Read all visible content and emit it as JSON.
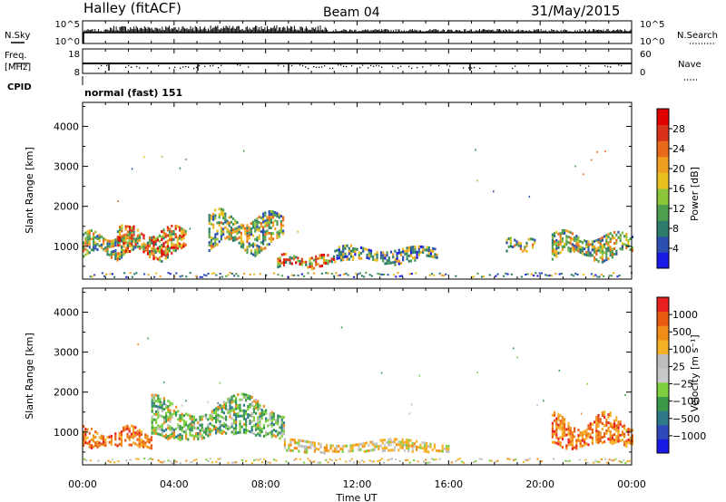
{
  "header": {
    "station": "Halley (fitACF)",
    "beam": "Beam 04",
    "date": "31/May/2015"
  },
  "strip": {
    "nsky_label": "N.Sky",
    "nsky_top": "10^5",
    "nsky_bottom": "10^0",
    "nsearch_label": "N.Search",
    "nsearch_top": "10^5",
    "nsearch_bottom": "10^0",
    "freq_label": "Freq.",
    "freq_unit": "[MHz]",
    "freq_top": "18",
    "freq_bottom": "8",
    "nave_label": "Nave",
    "nave_top": "60",
    "nave_bottom": "0",
    "cpid_label": "CPID",
    "mode": "normal (fast) 151"
  },
  "colors": {
    "power": [
      "#1a1ae6",
      "#2d4fb0",
      "#2e7d6b",
      "#4f9d4f",
      "#8cc43a",
      "#e8c020",
      "#f0a020",
      "#e86a1a",
      "#d8321a",
      "#e00000"
    ],
    "velocity": [
      "#e82020",
      "#e85a10",
      "#f08c18",
      "#f5b028",
      "#bdbdbd",
      "#c8c8c8",
      "#7ed040",
      "#3a9a4a",
      "#2e7a8a",
      "#2e4ab8",
      "#1a1ae6"
    ]
  },
  "chart_data": [
    {
      "type": "heatmap",
      "name": "power",
      "ylabel": "Slant Range [km]",
      "ylim": [
        180,
        4600
      ],
      "yticks": [
        1000,
        2000,
        3000,
        4000
      ],
      "xlim": [
        0,
        24
      ],
      "colorbar_label": "Power [dB]",
      "colorbar_range": [
        0,
        32
      ],
      "colorbar_ticks": [
        "4",
        "8",
        "12",
        "16",
        "20",
        "24",
        "28"
      ],
      "echo_regions": [
        {
          "t": [
            0.0,
            2.5
          ],
          "range": [
            750,
            1350
          ],
          "level": "medium"
        },
        {
          "t": [
            1.5,
            4.5
          ],
          "range": [
            700,
            1500
          ],
          "level": "high"
        },
        {
          "t": [
            5.5,
            8.8
          ],
          "range": [
            900,
            1850
          ],
          "level": "medium"
        },
        {
          "t": [
            8.5,
            11.0
          ],
          "range": [
            500,
            800
          ],
          "level": "high"
        },
        {
          "t": [
            11.0,
            15.5
          ],
          "range": [
            600,
            1000
          ],
          "level": "low"
        },
        {
          "t": [
            18.5,
            19.8
          ],
          "range": [
            900,
            1200
          ],
          "level": "medium"
        },
        {
          "t": [
            20.5,
            24.0
          ],
          "range": [
            700,
            1350
          ],
          "level": "medium"
        }
      ]
    },
    {
      "type": "heatmap",
      "name": "velocity",
      "ylabel": "Slant Range [km]",
      "ylim": [
        180,
        4600
      ],
      "yticks": [
        1000,
        2000,
        3000,
        4000
      ],
      "xlim": [
        0,
        24
      ],
      "xticks": [
        "00:00",
        "04:00",
        "08:00",
        "12:00",
        "16:00",
        "20:00",
        "00:00"
      ],
      "xlabel": "Time UT",
      "colorbar_label": "Velocity [m s⁻¹]",
      "colorbar_ticks": [
        "1000",
        "500",
        "100",
        "25",
        "−25",
        "−100",
        "−500",
        "−1000"
      ],
      "echo_regions": [
        {
          "t": [
            0.0,
            3.0
          ],
          "range": [
            600,
            1100
          ],
          "direction": "away"
        },
        {
          "t": [
            3.0,
            8.8
          ],
          "range": [
            800,
            1800
          ],
          "direction": "toward"
        },
        {
          "t": [
            8.8,
            16.0
          ],
          "range": [
            500,
            800
          ],
          "direction": "near-zero"
        },
        {
          "t": [
            20.5,
            24.0
          ],
          "range": [
            600,
            1400
          ],
          "direction": "away"
        }
      ]
    }
  ]
}
